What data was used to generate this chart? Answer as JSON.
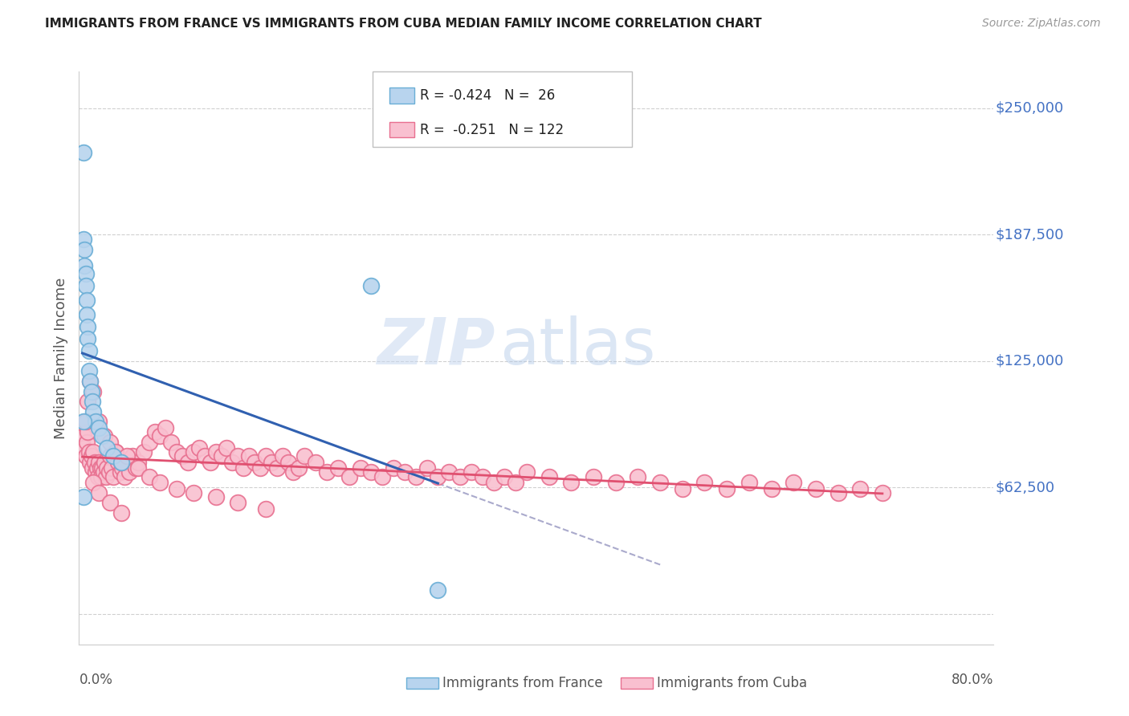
{
  "title": "IMMIGRANTS FROM FRANCE VS IMMIGRANTS FROM CUBA MEDIAN FAMILY INCOME CORRELATION CHART",
  "source": "Source: ZipAtlas.com",
  "ylabel": "Median Family Income",
  "watermark_zip": "ZIP",
  "watermark_atlas": "atlas",
  "france_color": "#b8d4ee",
  "france_edge_color": "#6aaed6",
  "cuba_color": "#f9c0d0",
  "cuba_edge_color": "#e87090",
  "france_line_color": "#3060b0",
  "cuba_line_color": "#e05070",
  "ytick_vals": [
    62500,
    125000,
    187500,
    250000
  ],
  "ytick_labels": [
    "$62,500",
    "$125,000",
    "$187,500",
    "$250,000"
  ],
  "ylim": [
    -15000,
    268000
  ],
  "xlim": [
    -0.003,
    0.82
  ],
  "legend_france_label": "Immigrants from France",
  "legend_cuba_label": "Immigrants from Cuba",
  "R_france": -0.424,
  "N_france": 26,
  "R_cuba": -0.251,
  "N_cuba": 122,
  "france_scatter_x": [
    0.001,
    0.001,
    0.002,
    0.002,
    0.003,
    0.003,
    0.004,
    0.004,
    0.005,
    0.005,
    0.006,
    0.006,
    0.007,
    0.008,
    0.009,
    0.01,
    0.012,
    0.015,
    0.018,
    0.022,
    0.028,
    0.035,
    0.001,
    0.26,
    0.001,
    0.32
  ],
  "france_scatter_y": [
    228000,
    185000,
    180000,
    172000,
    168000,
    162000,
    155000,
    148000,
    142000,
    136000,
    130000,
    120000,
    115000,
    110000,
    105000,
    100000,
    95000,
    92000,
    88000,
    82000,
    78000,
    75000,
    95000,
    162000,
    58000,
    12000
  ],
  "cuba_scatter_x": [
    0.001,
    0.002,
    0.003,
    0.004,
    0.005,
    0.006,
    0.007,
    0.008,
    0.009,
    0.01,
    0.011,
    0.012,
    0.013,
    0.014,
    0.015,
    0.016,
    0.017,
    0.018,
    0.019,
    0.02,
    0.021,
    0.022,
    0.024,
    0.025,
    0.026,
    0.028,
    0.03,
    0.032,
    0.034,
    0.036,
    0.038,
    0.04,
    0.042,
    0.045,
    0.048,
    0.05,
    0.055,
    0.06,
    0.065,
    0.07,
    0.075,
    0.08,
    0.085,
    0.09,
    0.095,
    0.1,
    0.105,
    0.11,
    0.115,
    0.12,
    0.125,
    0.13,
    0.135,
    0.14,
    0.145,
    0.15,
    0.155,
    0.16,
    0.165,
    0.17,
    0.175,
    0.18,
    0.185,
    0.19,
    0.195,
    0.2,
    0.21,
    0.22,
    0.23,
    0.24,
    0.25,
    0.26,
    0.27,
    0.28,
    0.29,
    0.3,
    0.31,
    0.32,
    0.33,
    0.34,
    0.35,
    0.36,
    0.37,
    0.38,
    0.39,
    0.4,
    0.42,
    0.44,
    0.46,
    0.48,
    0.5,
    0.52,
    0.54,
    0.56,
    0.58,
    0.6,
    0.62,
    0.64,
    0.66,
    0.68,
    0.7,
    0.72,
    0.003,
    0.005,
    0.007,
    0.01,
    0.015,
    0.02,
    0.025,
    0.03,
    0.035,
    0.04,
    0.05,
    0.06,
    0.07,
    0.085,
    0.1,
    0.12,
    0.14,
    0.165,
    0.01,
    0.015,
    0.025,
    0.035
  ],
  "cuba_scatter_y": [
    88000,
    82000,
    78000,
    85000,
    90000,
    80000,
    75000,
    78000,
    72000,
    80000,
    75000,
    70000,
    72000,
    68000,
    75000,
    72000,
    68000,
    72000,
    70000,
    75000,
    68000,
    72000,
    70000,
    78000,
    72000,
    68000,
    80000,
    75000,
    70000,
    72000,
    68000,
    75000,
    70000,
    78000,
    72000,
    75000,
    80000,
    85000,
    90000,
    88000,
    92000,
    85000,
    80000,
    78000,
    75000,
    80000,
    82000,
    78000,
    75000,
    80000,
    78000,
    82000,
    75000,
    78000,
    72000,
    78000,
    75000,
    72000,
    78000,
    75000,
    72000,
    78000,
    75000,
    70000,
    72000,
    78000,
    75000,
    70000,
    72000,
    68000,
    72000,
    70000,
    68000,
    72000,
    70000,
    68000,
    72000,
    68000,
    70000,
    68000,
    70000,
    68000,
    65000,
    68000,
    65000,
    70000,
    68000,
    65000,
    68000,
    65000,
    68000,
    65000,
    62000,
    65000,
    62000,
    65000,
    62000,
    65000,
    62000,
    60000,
    62000,
    60000,
    95000,
    105000,
    115000,
    110000,
    95000,
    88000,
    85000,
    80000,
    75000,
    78000,
    72000,
    68000,
    65000,
    62000,
    60000,
    58000,
    55000,
    52000,
    65000,
    60000,
    55000,
    50000
  ]
}
